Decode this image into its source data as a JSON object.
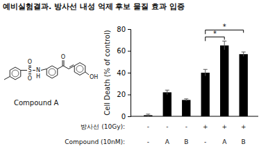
{
  "chart_data": {
    "type": "bar",
    "title": "예비실험결과. 방사선 내성 억제 후보 물질 효과 입증",
    "y_label": "Cell Death (% of control)",
    "categories": [
      null,
      null,
      null,
      null,
      null,
      null
    ],
    "values": [
      1,
      22,
      15,
      40,
      65,
      57
    ],
    "errors": [
      1,
      2,
      1,
      3,
      4,
      2
    ],
    "color": "#000000",
    "ylim": [
      0,
      80
    ],
    "yticks": [
      0,
      20,
      40,
      60,
      80
    ],
    "rows": [
      {
        "label": "방사선 (10Gy):",
        "values": [
          "-",
          "-",
          "-",
          "+",
          "+",
          "+"
        ]
      },
      {
        "label": "Compound (10nM):",
        "values": [
          "-",
          "A",
          "B",
          "-",
          "A",
          "B"
        ]
      }
    ],
    "significance": [
      {
        "from": 3,
        "to": 4,
        "label": "*"
      },
      {
        "from": 3,
        "to": 5,
        "label": "*"
      }
    ]
  },
  "compound": {
    "name": "Compound A",
    "atom_labels": [
      "S",
      "O",
      "O",
      "N",
      "H",
      "O",
      "OH"
    ]
  }
}
